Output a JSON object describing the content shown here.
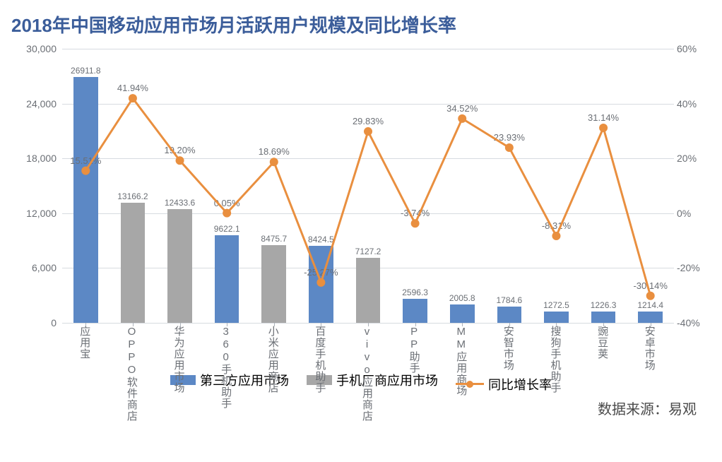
{
  "title": "2018年中国移动应用市场月活跃用户规模及同比增长率",
  "title_color": "#3b5d9a",
  "title_fontsize": 26,
  "source_label": "数据来源：易观",
  "source_color": "#4a4a4a",
  "colors": {
    "bar_third_party": "#5c88c5",
    "bar_oem": "#a7a7a7",
    "line": "#e98f3f",
    "marker": "#e98f3f",
    "grid": "#d7dbe0",
    "axis_text": "#6b6f75",
    "value_text": "#6b6f75",
    "background": "#ffffff"
  },
  "y_left": {
    "min": 0,
    "max": 30000,
    "step": 6000,
    "ticks": [
      "0",
      "6,000",
      "12,000",
      "18,000",
      "24,000",
      "30,000"
    ]
  },
  "y_right": {
    "min": -40,
    "max": 60,
    "step": 20,
    "ticks": [
      "-40%",
      "-20%",
      "0%",
      "20%",
      "40%",
      "60%"
    ]
  },
  "bar_width_ratio": 0.52,
  "line_width": 3,
  "marker_radius": 6,
  "legend": {
    "third_party": "第三方应用市场",
    "oem": "手机厂商应用市场",
    "growth": "同比增长率"
  },
  "series": [
    {
      "name": "应用宝",
      "type": "third",
      "value": 26911.8,
      "value_label": "26911.8",
      "growth": 15.51,
      "growth_label": "15.51%"
    },
    {
      "name": "OPPO软件商店",
      "type": "oem",
      "value": 13166.2,
      "value_label": "13166.2",
      "growth": 41.94,
      "growth_label": "41.94%"
    },
    {
      "name": "华为应用市场",
      "type": "oem",
      "value": 12433.6,
      "value_label": "12433.6",
      "growth": 19.2,
      "growth_label": "19.20%"
    },
    {
      "name": "360手机助手",
      "type": "third",
      "value": 9622.1,
      "value_label": "9622.1",
      "growth": 0.05,
      "growth_label": "0.05%"
    },
    {
      "name": "小米应用商店",
      "type": "oem",
      "value": 8475.7,
      "value_label": "8475.7",
      "growth": 18.69,
      "growth_label": "18.69%"
    },
    {
      "name": "百度手机助手",
      "type": "third",
      "value": 8424.5,
      "value_label": "8424.5",
      "growth": -25.27,
      "growth_label": "-25.27%"
    },
    {
      "name": "vivo应用商店",
      "type": "oem",
      "value": 7127.2,
      "value_label": "7127.2",
      "growth": 29.83,
      "growth_label": "29.83%"
    },
    {
      "name": "PP助手",
      "type": "third",
      "value": 2596.3,
      "value_label": "2596.3",
      "growth": -3.74,
      "growth_label": "-3.74%"
    },
    {
      "name": "MM应用商场",
      "type": "third",
      "value": 2005.8,
      "value_label": "2005.8",
      "growth": 34.52,
      "growth_label": "34.52%"
    },
    {
      "name": "安智市场",
      "type": "third",
      "value": 1784.6,
      "value_label": "1784.6",
      "growth": 23.93,
      "growth_label": "23.93%"
    },
    {
      "name": "搜狗手机助手",
      "type": "third",
      "value": 1272.5,
      "value_label": "1272.5",
      "growth": -8.31,
      "growth_label": "-8.31%"
    },
    {
      "name": "豌豆荚",
      "type": "third",
      "value": 1226.3,
      "value_label": "1226.3",
      "growth": 31.14,
      "growth_label": "31.14%"
    },
    {
      "name": "安卓市场",
      "type": "third",
      "value": 1214.4,
      "value_label": "1214.4",
      "growth": -30.14,
      "growth_label": "-30.14%"
    }
  ]
}
